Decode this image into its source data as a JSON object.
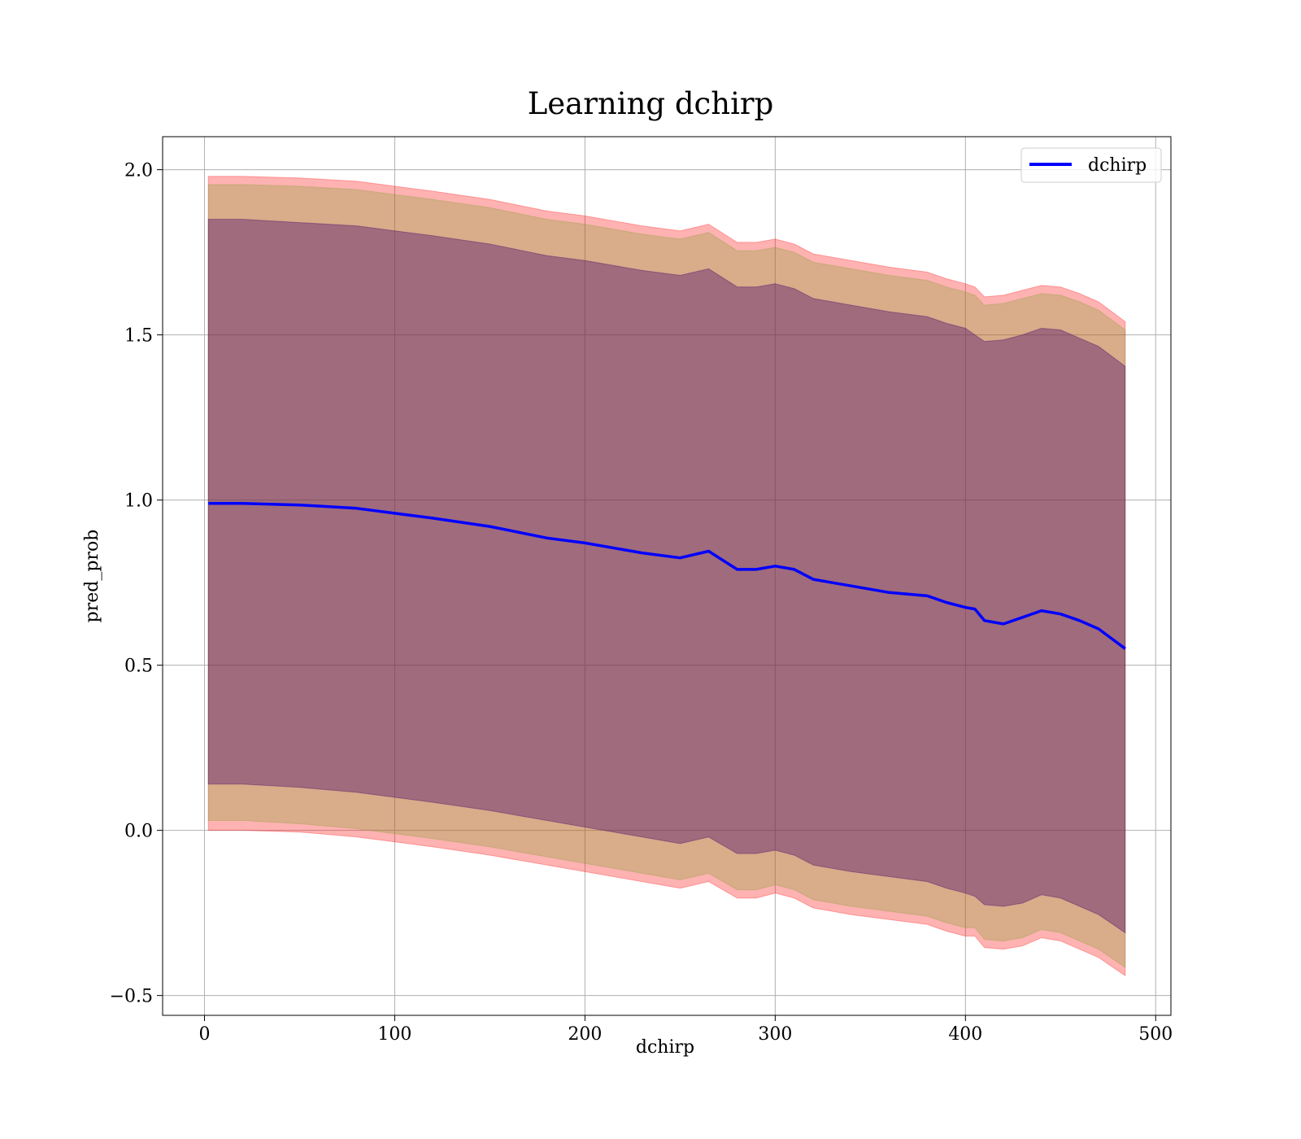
{
  "chart_data": {
    "type": "line",
    "title": "Learning dchirp",
    "xlabel": "dchirp",
    "ylabel": "pred_prob",
    "xlim": [
      -22,
      508
    ],
    "ylim": [
      -0.56,
      2.1
    ],
    "grid": true,
    "legend_position": "top-right",
    "xticks": [
      {
        "value": 0,
        "label": "0"
      },
      {
        "value": 100,
        "label": "100"
      },
      {
        "value": 200,
        "label": "200"
      },
      {
        "value": 300,
        "label": "300"
      },
      {
        "value": 400,
        "label": "400"
      },
      {
        "value": 500,
        "label": "500"
      }
    ],
    "yticks": [
      {
        "value": -0.5,
        "label": "−0.5"
      },
      {
        "value": 0.0,
        "label": "0.0"
      },
      {
        "value": 0.5,
        "label": "0.5"
      },
      {
        "value": 1.0,
        "label": "1.0"
      },
      {
        "value": 1.5,
        "label": "1.5"
      },
      {
        "value": 2.0,
        "label": "2.0"
      }
    ],
    "x": [
      2,
      20,
      50,
      80,
      100,
      120,
      150,
      180,
      200,
      230,
      250,
      265,
      280,
      290,
      300,
      310,
      320,
      340,
      360,
      380,
      390,
      400,
      405,
      410,
      420,
      430,
      440,
      450,
      460,
      470,
      484
    ],
    "series": [
      {
        "name": "dchirp",
        "color": "#0000ff",
        "values": [
          0.99,
          0.99,
          0.985,
          0.975,
          0.96,
          0.945,
          0.92,
          0.885,
          0.87,
          0.84,
          0.825,
          0.845,
          0.79,
          0.79,
          0.8,
          0.79,
          0.76,
          0.74,
          0.72,
          0.71,
          0.69,
          0.675,
          0.67,
          0.635,
          0.625,
          0.645,
          0.665,
          0.655,
          0.635,
          0.61,
          0.55
        ]
      }
    ],
    "bands": [
      {
        "color": "#ff0000",
        "opacity": 0.3,
        "lower": [
          0.0,
          0.0,
          -0.005,
          -0.02,
          -0.035,
          -0.05,
          -0.075,
          -0.105,
          -0.125,
          -0.155,
          -0.175,
          -0.155,
          -0.205,
          -0.205,
          -0.19,
          -0.205,
          -0.235,
          -0.255,
          -0.27,
          -0.285,
          -0.305,
          -0.32,
          -0.32,
          -0.355,
          -0.36,
          -0.35,
          -0.325,
          -0.335,
          -0.36,
          -0.385,
          -0.44
        ],
        "upper": [
          1.98,
          1.98,
          1.975,
          1.965,
          1.95,
          1.935,
          1.91,
          1.875,
          1.86,
          1.83,
          1.815,
          1.835,
          1.78,
          1.78,
          1.79,
          1.775,
          1.745,
          1.725,
          1.705,
          1.69,
          1.67,
          1.655,
          1.645,
          1.615,
          1.62,
          1.635,
          1.65,
          1.645,
          1.625,
          1.6,
          1.54
        ]
      },
      {
        "color": "#80a030",
        "opacity": 0.3,
        "lower": [
          0.03,
          0.03,
          0.02,
          0.005,
          -0.01,
          -0.025,
          -0.05,
          -0.08,
          -0.1,
          -0.13,
          -0.15,
          -0.13,
          -0.18,
          -0.18,
          -0.165,
          -0.18,
          -0.21,
          -0.23,
          -0.245,
          -0.26,
          -0.28,
          -0.295,
          -0.295,
          -0.33,
          -0.335,
          -0.325,
          -0.3,
          -0.31,
          -0.335,
          -0.36,
          -0.415
        ],
        "upper": [
          1.955,
          1.955,
          1.95,
          1.94,
          1.925,
          1.91,
          1.885,
          1.85,
          1.835,
          1.805,
          1.79,
          1.81,
          1.755,
          1.755,
          1.765,
          1.75,
          1.72,
          1.7,
          1.68,
          1.665,
          1.645,
          1.63,
          1.62,
          1.59,
          1.595,
          1.61,
          1.625,
          1.62,
          1.6,
          1.575,
          1.515
        ]
      },
      {
        "color": "#4a0a6a",
        "opacity": 0.4,
        "lower": [
          0.14,
          0.14,
          0.13,
          0.115,
          0.1,
          0.085,
          0.06,
          0.03,
          0.01,
          -0.02,
          -0.04,
          -0.02,
          -0.07,
          -0.07,
          -0.06,
          -0.075,
          -0.105,
          -0.125,
          -0.14,
          -0.155,
          -0.175,
          -0.19,
          -0.2,
          -0.225,
          -0.23,
          -0.22,
          -0.195,
          -0.205,
          -0.23,
          -0.255,
          -0.31
        ],
        "upper": [
          1.85,
          1.85,
          1.84,
          1.83,
          1.815,
          1.8,
          1.775,
          1.74,
          1.725,
          1.695,
          1.68,
          1.7,
          1.645,
          1.645,
          1.655,
          1.64,
          1.61,
          1.59,
          1.57,
          1.555,
          1.535,
          1.52,
          1.5,
          1.48,
          1.485,
          1.5,
          1.52,
          1.515,
          1.49,
          1.465,
          1.405
        ]
      }
    ]
  }
}
